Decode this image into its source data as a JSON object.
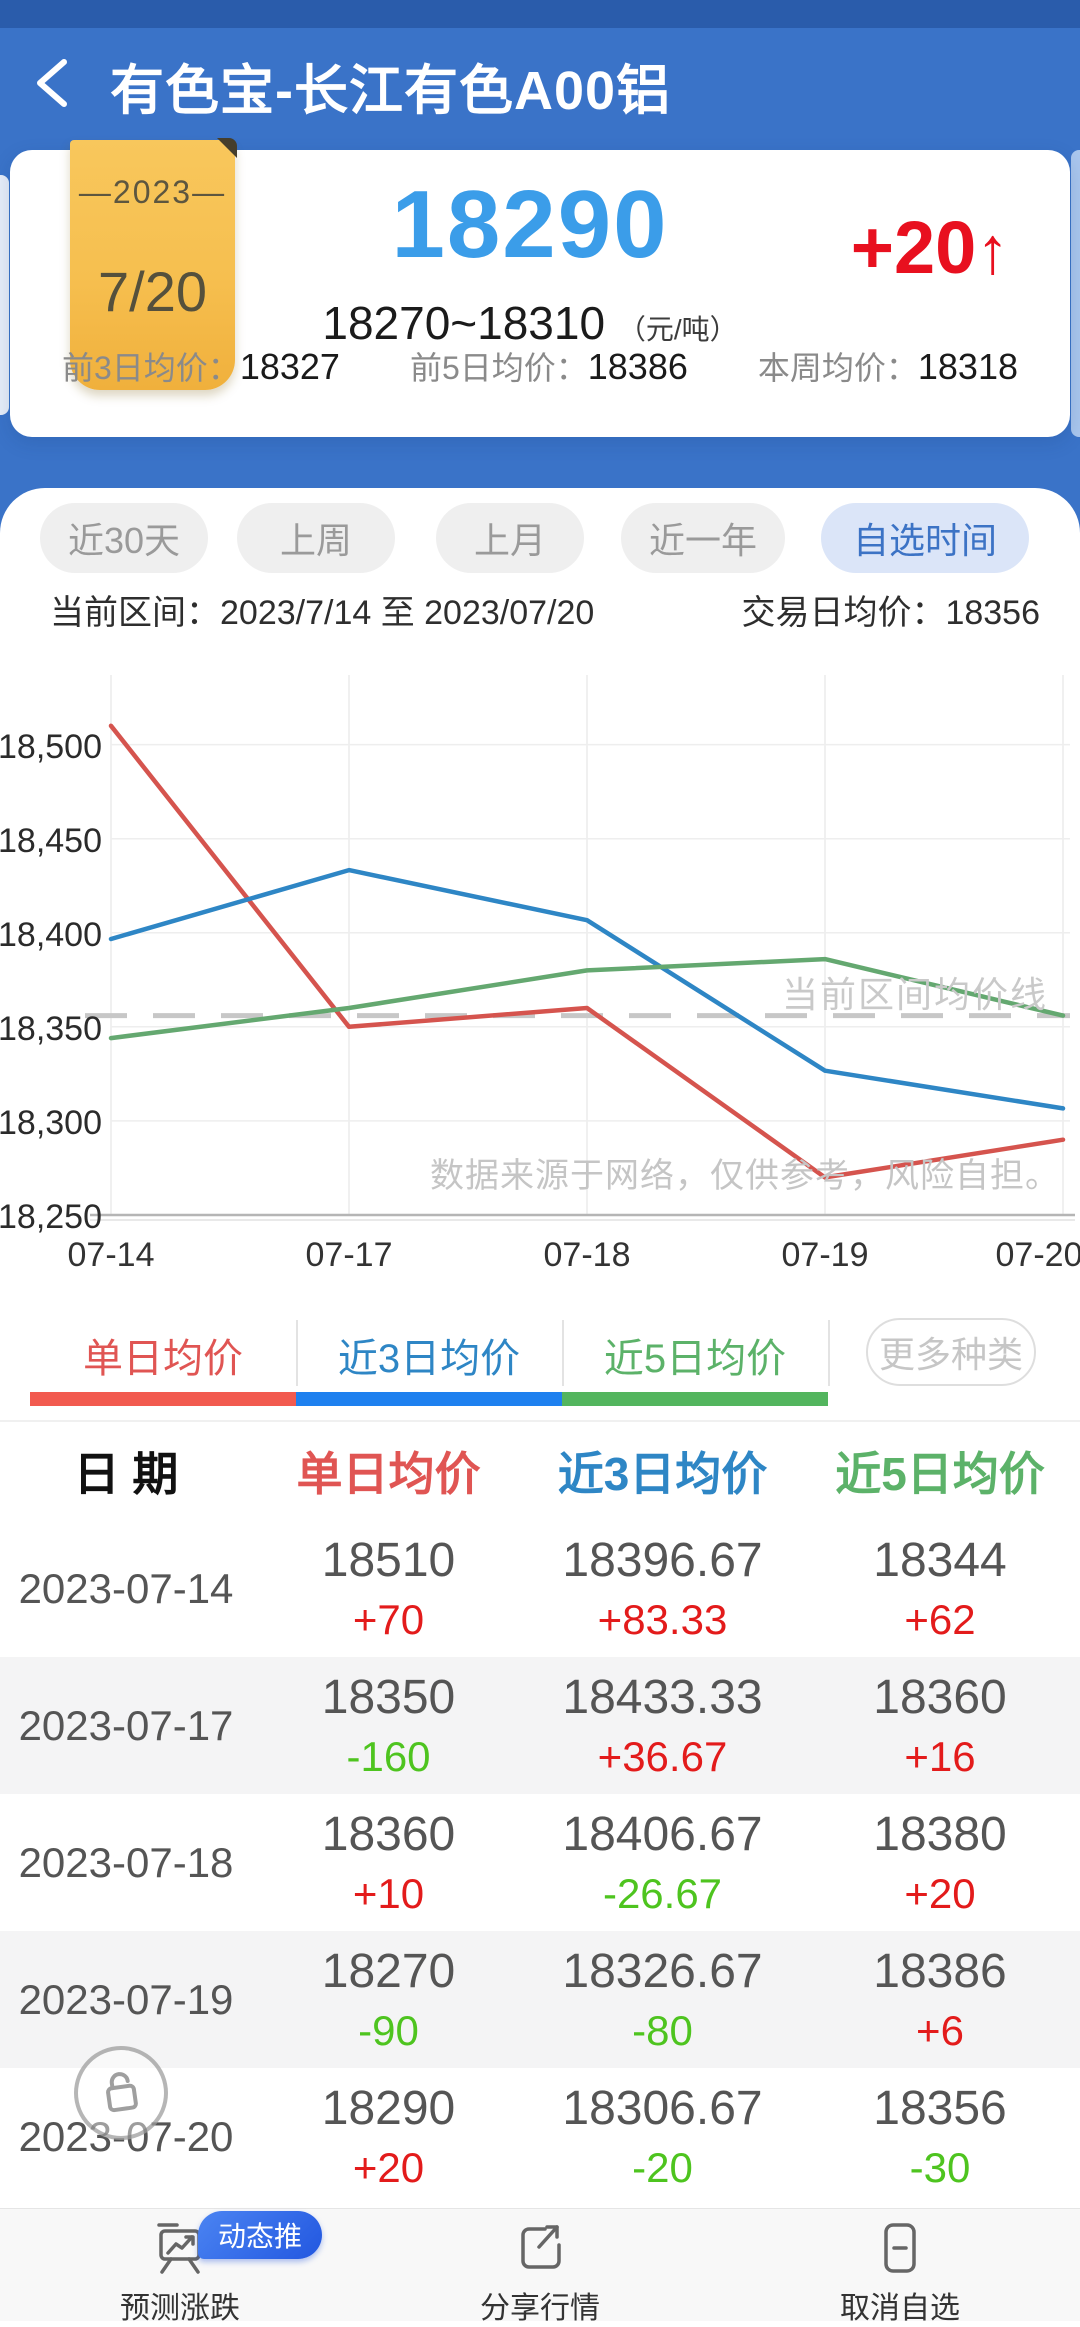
{
  "colors": {
    "status_blue": "#2a5cab",
    "header_blue": "#3a73c8",
    "price_blue": "#3b9de9",
    "big_red": "#e8101f",
    "rise_red": "#e31b1b",
    "fall_green": "#4ec41f",
    "badge_yellow": "#f6bf4f",
    "tab_bg": "#efefef",
    "tab_text": "#9a9a9a",
    "tab_active_bg": "#dbe5f8",
    "tab_active_text": "#3c73c5"
  },
  "header": {
    "title": "有色宝-长江有色A00铝"
  },
  "price_card": {
    "date_badge": {
      "year": "—2023—",
      "day": "7/20"
    },
    "price": "18290",
    "range": "18270~18310",
    "unit": "（元/吨）",
    "change": "+20",
    "change_arrow": "↑",
    "stats": [
      {
        "label": "前3日均价：",
        "value": "18327"
      },
      {
        "label": "前5日均价：",
        "value": "18386"
      },
      {
        "label": "本周均价：",
        "value": "18318"
      }
    ]
  },
  "period_tabs": [
    {
      "label": "近30天",
      "active": false
    },
    {
      "label": "上周",
      "active": false
    },
    {
      "label": "上月",
      "active": false
    },
    {
      "label": "近一年",
      "active": false
    },
    {
      "label": "自选时间",
      "active": true
    }
  ],
  "range_bar": {
    "left": "当前区间：2023/7/14 至 2023/07/20",
    "right_label": "交易日均价：",
    "right_value": "18356"
  },
  "chart_data": {
    "type": "line",
    "x": [
      "07-14",
      "07-17",
      "07-18",
      "07-19",
      "07-20"
    ],
    "series": [
      {
        "name": "单日均价",
        "color": "#d5544e",
        "values": [
          18510,
          18350,
          18360,
          18270,
          18290
        ]
      },
      {
        "name": "近3日均价",
        "color": "#2e86c5",
        "values": [
          18396.67,
          18433.33,
          18406.67,
          18326.67,
          18306.67
        ]
      },
      {
        "name": "近5日均价",
        "color": "#64a870",
        "values": [
          18344,
          18360,
          18380,
          18386,
          18356
        ]
      }
    ],
    "avg_line": {
      "value": 18356,
      "label": "当前区间均价线"
    },
    "ylim": [
      18250,
      18537
    ],
    "yticks": [
      18250,
      18300,
      18350,
      18400,
      18450,
      18500
    ],
    "ytick_labels_desc": [
      "18,500",
      "18,450",
      "18,400",
      "18,350",
      "18,300",
      "18,250"
    ],
    "watermark": "数据来源于网络，仅供参考，风险自担。",
    "grid": true,
    "legend_position": "bottom"
  },
  "legend": {
    "items": [
      {
        "label": "单日均价",
        "color": "#e05553"
      },
      {
        "label": "近3日均价",
        "color": "#2e86c5"
      },
      {
        "label": "近5日均价",
        "color": "#5cb269"
      }
    ],
    "more_button": "更多种类"
  },
  "table": {
    "headers": [
      {
        "label": "日 期",
        "color": "#111111"
      },
      {
        "label": "单日均价",
        "color": "#e05553"
      },
      {
        "label": "近3日均价",
        "color": "#2e86c5"
      },
      {
        "label": "近5日均价",
        "color": "#5cb269"
      }
    ],
    "rows": [
      {
        "date": "2023-07-14",
        "cells": [
          {
            "value": "18510",
            "change": "+70"
          },
          {
            "value": "18396.67",
            "change": "+83.33"
          },
          {
            "value": "18344",
            "change": "+62"
          }
        ]
      },
      {
        "date": "2023-07-17",
        "cells": [
          {
            "value": "18350",
            "change": "-160"
          },
          {
            "value": "18433.33",
            "change": "+36.67"
          },
          {
            "value": "18360",
            "change": "+16"
          }
        ]
      },
      {
        "date": "2023-07-18",
        "cells": [
          {
            "value": "18360",
            "change": "+10"
          },
          {
            "value": "18406.67",
            "change": "-26.67"
          },
          {
            "value": "18380",
            "change": "+20"
          }
        ]
      },
      {
        "date": "2023-07-19",
        "cells": [
          {
            "value": "18270",
            "change": "-90"
          },
          {
            "value": "18326.67",
            "change": "-80"
          },
          {
            "value": "18386",
            "change": "+6"
          }
        ]
      },
      {
        "date": "2023-07-20",
        "cells": [
          {
            "value": "18290",
            "change": "+20"
          },
          {
            "value": "18306.67",
            "change": "-20"
          },
          {
            "value": "18356",
            "change": "-30"
          }
        ]
      }
    ]
  },
  "bottom_nav": [
    {
      "label": "预测涨跌",
      "badge": "动态推"
    },
    {
      "label": "分享行情"
    },
    {
      "label": "取消自选"
    }
  ]
}
